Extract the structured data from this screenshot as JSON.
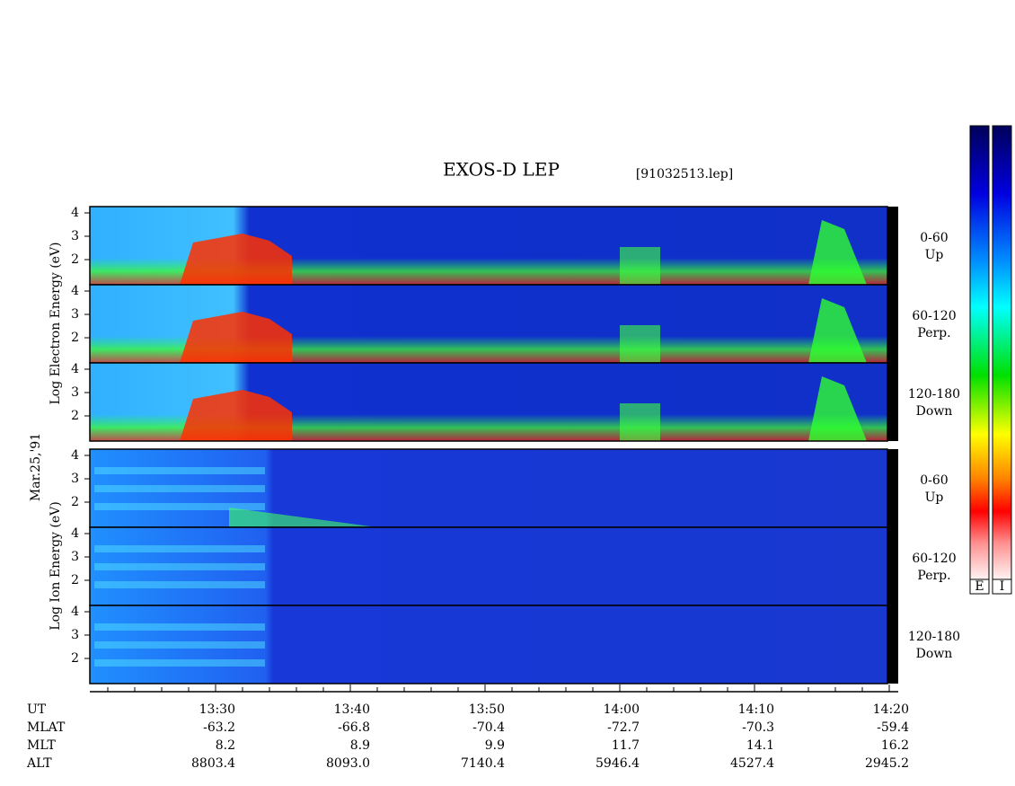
{
  "title": "EXOS-D LEP",
  "file": "[91032513.lep]",
  "date": "Mar.25,'91",
  "electron": {
    "label": "Log Electron Energy (eV)",
    "panels": [
      {
        "angle": "0-60",
        "direction": "Up"
      },
      {
        "angle": "60-120",
        "direction": "Perp."
      },
      {
        "angle": "120-180",
        "direction": "Down"
      }
    ]
  },
  "ion": {
    "label": "Log Ion Energy (eV)",
    "panels": [
      {
        "angle": "0-60",
        "direction": "Up"
      },
      {
        "angle": "60-120",
        "direction": "Perp."
      },
      {
        "angle": "120-180",
        "direction": "Down"
      }
    ]
  },
  "energy_ticks": [
    "4",
    "3",
    "2"
  ],
  "colorbars": [
    "E",
    "I"
  ],
  "time_axis": {
    "rows": [
      {
        "name": "UT",
        "values": [
          "13:30",
          "13:40",
          "13:50",
          "14:00",
          "14:10",
          "14:20"
        ]
      },
      {
        "name": "MLAT",
        "values": [
          "-63.2",
          "-66.8",
          "-70.4",
          "-72.7",
          "-70.3",
          "-59.4"
        ]
      },
      {
        "name": "MLT",
        "values": [
          "8.2",
          "8.9",
          "9.9",
          "11.7",
          "14.1",
          "16.2"
        ]
      },
      {
        "name": "ALT",
        "values": [
          "8803.4",
          "8093.0",
          "7140.4",
          "5946.4",
          "4527.4",
          "2945.2"
        ]
      }
    ]
  }
}
